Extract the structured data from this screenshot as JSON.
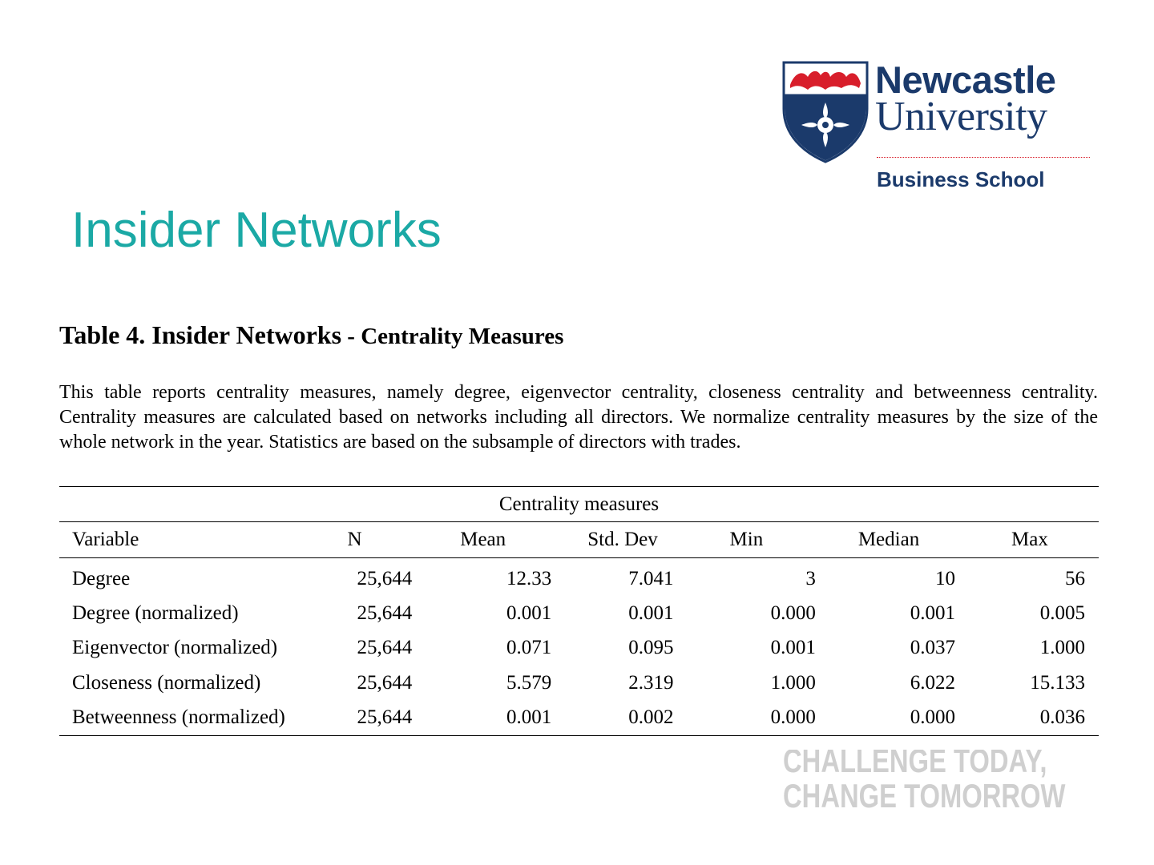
{
  "logo": {
    "wordmark_line1": "Newcastle",
    "wordmark_line2": "University",
    "school": "Business School",
    "shield_icon": "newcastle-university-shield",
    "colors": {
      "navy": "#1b3a6b",
      "red": "#d81e2b"
    }
  },
  "page": {
    "title": "Insider Networks",
    "title_color": "#1ba9a5"
  },
  "table": {
    "title_main": "Table 4. Insider Networks",
    "title_rest": " - Centrality Measures",
    "description": "This table reports centrality measures, namely degree, eigenvector centrality, closeness centrality and betweenness centrality. Centrality measures are calculated based on networks including all directors. We normalize centrality measures by the size of the whole network in the year. Statistics are based on the subsample of directors with trades.",
    "group_header": "Centrality measures",
    "columns": [
      "Variable",
      "N",
      "Mean",
      "Std. Dev",
      "Min",
      "Median",
      "Max"
    ],
    "rows": [
      [
        "Degree",
        "25,644",
        "12.33",
        "7.041",
        "3",
        "10",
        "56"
      ],
      [
        "Degree (normalized)",
        "25,644",
        "0.001",
        "0.001",
        "0.000",
        "0.001",
        "0.005"
      ],
      [
        "Eigenvector (normalized)",
        "25,644",
        "0.071",
        "0.095",
        "0.001",
        "0.037",
        "1.000"
      ],
      [
        "Closeness (normalized)",
        "25,644",
        "5.579",
        "2.319",
        "1.000",
        "6.022",
        "15.133"
      ],
      [
        "Betweenness (normalized)",
        "25,644",
        "0.001",
        "0.002",
        "0.000",
        "0.000",
        "0.036"
      ]
    ]
  },
  "slogan": {
    "line1": "CHALLENGE TODAY,",
    "line2": "CHANGE TOMORROW",
    "color": "#cfcfcf"
  }
}
